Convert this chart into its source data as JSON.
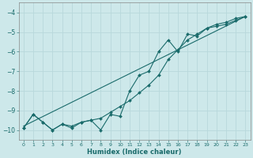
{
  "xlabel": "Humidex (Indice chaleur)",
  "xlim": [
    -0.5,
    23.5
  ],
  "ylim": [
    -10.5,
    -3.5
  ],
  "yticks": [
    -10,
    -9,
    -8,
    -7,
    -6,
    -5,
    -4
  ],
  "xticks": [
    0,
    1,
    2,
    3,
    4,
    5,
    6,
    7,
    8,
    9,
    10,
    11,
    12,
    13,
    14,
    15,
    16,
    17,
    18,
    19,
    20,
    21,
    22,
    23
  ],
  "bg_color": "#cde8ea",
  "line_color": "#1a6b6b",
  "grid_color": "#b8d8db",
  "smooth_line_x": [
    0,
    1,
    2,
    3,
    4,
    5,
    6,
    7,
    8,
    9,
    10,
    11,
    12,
    13,
    14,
    15,
    16,
    17,
    18,
    19,
    20,
    21,
    22,
    23
  ],
  "smooth_line_y": [
    -9.9,
    -9.2,
    -9.6,
    -10.0,
    -9.7,
    -9.8,
    -9.6,
    -9.5,
    -9.4,
    -9.1,
    -8.8,
    -8.5,
    -8.1,
    -7.7,
    -7.2,
    -6.4,
    -5.9,
    -5.4,
    -5.1,
    -4.8,
    -4.6,
    -4.5,
    -4.3,
    -4.2
  ],
  "jagged_line_x": [
    0,
    1,
    2,
    3,
    4,
    5,
    6,
    7,
    8,
    9,
    10,
    11,
    12,
    13,
    14,
    15,
    16,
    17,
    18,
    19,
    20,
    21,
    22,
    23
  ],
  "jagged_line_y": [
    -9.9,
    -9.2,
    -9.6,
    -10.0,
    -9.7,
    -9.9,
    -9.6,
    -9.5,
    -10.0,
    -9.2,
    -9.3,
    -8.0,
    -7.2,
    -7.0,
    -6.0,
    -5.4,
    -6.0,
    -5.1,
    -5.2,
    -4.8,
    -4.7,
    -4.6,
    -4.4,
    -4.2
  ],
  "reg_line_x": [
    0,
    23
  ],
  "reg_line_y": [
    -9.8,
    -4.2
  ],
  "marker": "D",
  "markersize": 2.0,
  "linewidth": 0.8
}
